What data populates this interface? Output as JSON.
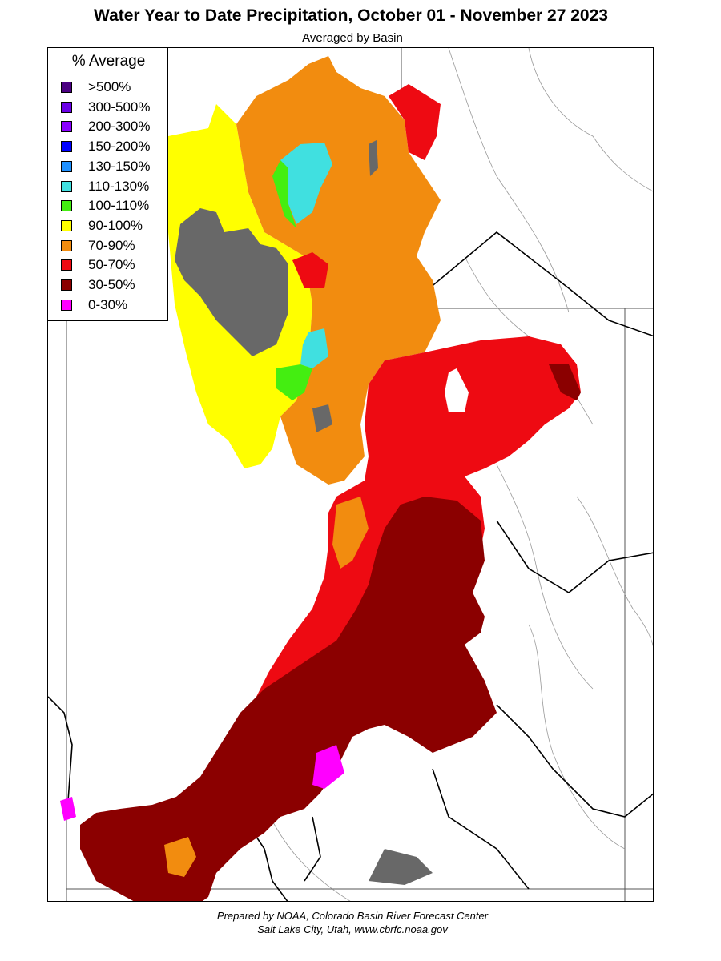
{
  "title": "Water Year to Date Precipitation, October 01  - November 27 2023",
  "subtitle": "Averaged by Basin",
  "legend": {
    "title": "% Average",
    "items": [
      {
        "label": ">500%",
        "color": "#4b0082"
      },
      {
        "label": "300-500%",
        "color": "#6a00e6"
      },
      {
        "label": "200-300%",
        "color": "#8a00ff"
      },
      {
        "label": "150-200%",
        "color": "#0000ff"
      },
      {
        "label": "130-150%",
        "color": "#1e90ff"
      },
      {
        "label": "110-130%",
        "color": "#40e0e0"
      },
      {
        "label": "100-110%",
        "color": "#44ee11"
      },
      {
        "label": "90-100%",
        "color": "#ffff00"
      },
      {
        "label": "70-90%",
        "color": "#f28c0f"
      },
      {
        "label": "50-70%",
        "color": "#ee0a12"
      },
      {
        "label": "30-50%",
        "color": "#8b0000"
      },
      {
        "label": "0-30%",
        "color": "#ff00ff"
      }
    ]
  },
  "map": {
    "no_data_color": "#686868",
    "water_color": "#686868"
  },
  "footer": {
    "line1": "Prepared by NOAA, Colorado Basin River Forecast Center",
    "line2": "Salt Lake City, Utah, www.cbrfc.noaa.gov"
  }
}
